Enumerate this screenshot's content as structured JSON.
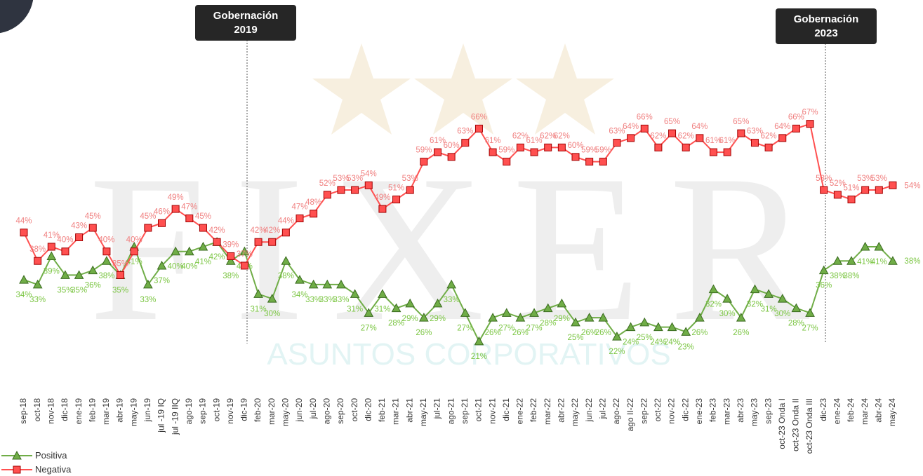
{
  "chart_data": {
    "type": "line",
    "watermark": "FIXER",
    "watermark_subtitle": "ASUNTOS CORPORATIVOS",
    "annotations": [
      {
        "lines": [
          "Gobernación",
          "2019"
        ]
      },
      {
        "lines": [
          "Gobernación",
          "2023"
        ]
      }
    ],
    "categories": [
      "sep-18",
      "oct-18",
      "nov-18",
      "dic-18",
      "ene-19",
      "feb-19",
      "mar-19",
      "abr-19",
      "may-19",
      "jun-19",
      "jul -19 IQ",
      "jul -19 IIQ",
      "ago-19",
      "sep-19",
      "oct-19",
      "nov-19",
      "dic-19",
      "feb-20",
      "mar-20",
      "may-20",
      "jun-20",
      "jul-20",
      "ago-20",
      "sep-20",
      "oct-20",
      "dic-20",
      "feb-21",
      "mar-21",
      "abr-21",
      "may-21",
      "jul-21",
      "ago-21",
      "sep-21",
      "oct-21",
      "nov-21",
      "dic-21",
      "ene-22",
      "feb-22",
      "mar-22",
      "abr-22",
      "may-22",
      "jun-22",
      "jul-22",
      "ago-22",
      "ago II-22",
      "sep-22",
      "oct-22",
      "nov-22",
      "dic-22",
      "ene-23",
      "feb-23",
      "mar-23",
      "abr-23",
      "may-23",
      "sep-23",
      "oct-23 Onda I",
      "oct-23 Onda II",
      "oct-23 Onda III",
      "dic-23",
      "ene-24",
      "feb-24",
      "mar-24",
      "abr-24",
      "may-24"
    ],
    "series": [
      {
        "name": "Positiva",
        "color": "#70ad47",
        "marker": "triangle",
        "values": [
          34,
          33,
          39,
          35,
          35,
          36,
          38,
          35,
          41,
          33,
          37,
          40,
          40,
          41,
          42,
          38,
          40,
          31,
          30,
          38,
          34,
          33,
          33,
          33,
          31,
          27,
          31,
          28,
          29,
          26,
          29,
          33,
          27,
          21,
          26,
          27,
          26,
          27,
          28,
          29,
          25,
          26,
          26,
          22,
          24,
          25,
          24,
          24,
          23,
          26,
          32,
          30,
          26,
          32,
          31,
          30,
          28,
          27,
          36,
          38,
          38,
          41,
          41,
          38
        ],
        "value_labels": [
          "34%",
          "33%",
          "39%",
          "35%",
          "35%",
          "36%",
          "38%",
          "35%",
          "41%",
          "33%",
          "37%",
          "40%",
          "40%",
          "41%",
          "42%",
          "38%",
          "40%",
          "31%",
          "30%",
          "38%",
          "34%",
          "33%",
          "33%",
          "33%",
          "31%",
          "27%",
          "31%",
          "28%",
          "29%",
          "26%",
          "29%",
          "33%",
          "27%",
          "21%",
          "26%",
          "27%",
          "26%",
          "27%",
          "28%",
          "29%",
          "25%",
          "26%",
          "26%",
          "22%",
          "24%",
          "25%",
          "24%",
          "24%",
          "23%",
          "26%",
          "32%",
          "30%",
          "26%",
          "32%",
          "31%",
          "30%",
          "28%",
          "27%",
          "36%",
          "38%",
          "38%",
          "41%",
          "41%",
          "38%"
        ]
      },
      {
        "name": "Negativa",
        "color": "#ff5050",
        "marker": "square",
        "values": [
          44,
          38,
          41,
          40,
          43,
          45,
          40,
          35,
          40,
          45,
          46,
          49,
          47,
          45,
          42,
          39,
          37,
          42,
          42,
          44,
          47,
          48,
          52,
          53,
          53,
          54,
          49,
          51,
          53,
          59,
          61,
          60,
          63,
          66,
          61,
          59,
          62,
          61,
          62,
          62,
          60,
          59,
          59,
          63,
          64,
          66,
          62,
          65,
          62,
          64,
          61,
          61,
          65,
          63,
          62,
          64,
          66,
          67,
          53,
          52,
          51,
          53,
          53,
          54
        ],
        "value_labels": [
          "44%",
          "38%",
          "41%",
          "40%",
          "43%",
          "45%",
          "40%",
          "35%",
          "40%",
          "45%",
          "46%",
          "49%",
          "47%",
          "45%",
          "42%",
          "39%",
          "37%",
          "42%",
          "42%",
          "44%",
          "47%",
          "48%",
          "52%",
          "53%",
          "53%",
          "54%",
          "49%",
          "51%",
          "53%",
          "59%",
          "61%",
          "60%",
          "63%",
          "66%",
          "61%",
          "59%",
          "62%",
          "61%",
          "62%",
          "62%",
          "60%",
          "59%",
          "59%",
          "63%",
          "64%",
          "66%",
          "62%",
          "65%",
          "62%",
          "64%",
          "61%",
          "61%",
          "65%",
          "63%",
          "62%",
          "64%",
          "66%",
          "67%",
          "53%",
          "52%",
          "51%",
          "53%",
          "53%",
          "54%"
        ]
      }
    ],
    "ylim": [
      10,
      80
    ],
    "legend": "bottom-left"
  }
}
